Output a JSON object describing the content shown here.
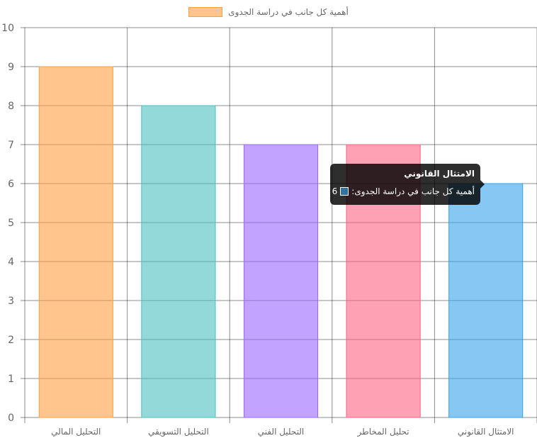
{
  "chart_data": {
    "type": "bar",
    "categories": [
      "التحليل المالي",
      "التحليل التسويقي",
      "التحليل الفني",
      "تحليل المخاطر",
      "الامتثال القانوني"
    ],
    "series": [
      {
        "name": "أهمية كل جانب في دراسة الجدوى",
        "values": [
          9,
          8,
          7,
          7,
          6
        ]
      }
    ],
    "ylim": [
      0,
      10
    ],
    "yticks": [
      "0",
      "1",
      "2",
      "3",
      "4",
      "5",
      "6",
      "7",
      "8",
      "9",
      "10"
    ],
    "grid": true,
    "legend_position": "top",
    "colors": {
      "fills": [
        "rgba(255,159,64,0.6)",
        "rgba(75,192,192,0.6)",
        "rgba(153,102,255,0.6)",
        "rgba(255,99,132,0.6)",
        "rgba(54,162,235,0.6)"
      ],
      "borders": [
        "#ff9f40",
        "#4bc0c0",
        "#9966ff",
        "#ff6384",
        "#36a2eb"
      ]
    }
  },
  "legend": {
    "label": "أهمية كل جانب في دراسة الجدوى"
  },
  "tooltip": {
    "title": "الامتثال القانوني",
    "label": "أهمية كل جانب في دراسة الجدوى:",
    "value": "6"
  }
}
